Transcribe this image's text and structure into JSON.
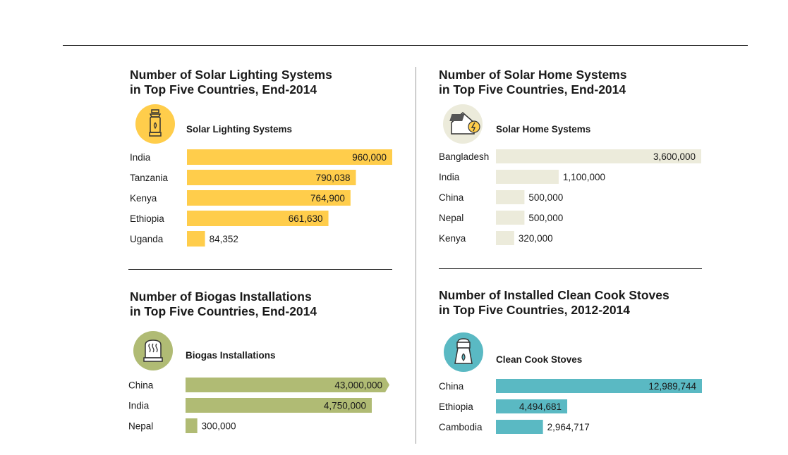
{
  "chart_data": [
    {
      "type": "bar",
      "orientation": "horizontal",
      "title": [
        "Number of Solar Lighting Systems",
        "in Top Five Countries, End-2014"
      ],
      "legend": "Solar Lighting Systems",
      "icon": "lantern-icon",
      "color": "#ffcd4b",
      "icon_bg": "#ffcd4b",
      "categories": [
        "India",
        "Tanzania",
        "Kenya",
        "Ethiopia",
        "Uganda"
      ],
      "values": [
        960000,
        790038,
        764900,
        661630,
        84352
      ],
      "labels": [
        "960,000",
        "790,038",
        "764,900",
        "661,630",
        "84,352"
      ],
      "xlim": [
        0,
        960000
      ]
    },
    {
      "type": "bar",
      "orientation": "horizontal",
      "title": [
        "Number of Solar Home Systems",
        "in Top Five Countries, End-2014"
      ],
      "legend": "Solar Home Systems",
      "icon": "solar-house-icon",
      "color": "#ecebdb",
      "icon_bg": "#ecebdb",
      "categories": [
        "Bangladesh",
        "India",
        "China",
        "Nepal",
        "Kenya"
      ],
      "values": [
        3600000,
        1100000,
        500000,
        500000,
        320000
      ],
      "labels": [
        "3,600,000",
        "1,100,000",
        "500,000",
        "500,000",
        "320,000"
      ],
      "xlim": [
        0,
        3600000
      ]
    },
    {
      "type": "bar",
      "orientation": "horizontal",
      "title": [
        "Number of Biogas Installations",
        "in Top Five Countries, End-2014"
      ],
      "legend": "Biogas Installations",
      "icon": "biogas-tank-icon",
      "color": "#b0bb74",
      "icon_bg": "#b0bb74",
      "categories": [
        "China",
        "India",
        "Nepal"
      ],
      "values": [
        43000000,
        4750000,
        300000
      ],
      "labels": [
        "43,000,000",
        "4,750,000",
        "300,000"
      ],
      "broken_axis_first_bar": true,
      "display_scale_reference": 5200000
    },
    {
      "type": "bar",
      "orientation": "horizontal",
      "title": [
        "Number of Installed Clean Cook Stoves",
        "in Top Five Countries, 2012-2014"
      ],
      "legend": "Clean Cook Stoves",
      "icon": "cookstove-icon",
      "color": "#5ab9c3",
      "icon_bg": "#5ab9c3",
      "categories": [
        "China",
        "Ethiopia",
        "Cambodia"
      ],
      "values": [
        12989744,
        4494681,
        2964717
      ],
      "labels": [
        "12,989,744",
        "4,494,681",
        "2,964,717"
      ],
      "xlim": [
        0,
        12989744
      ]
    }
  ]
}
